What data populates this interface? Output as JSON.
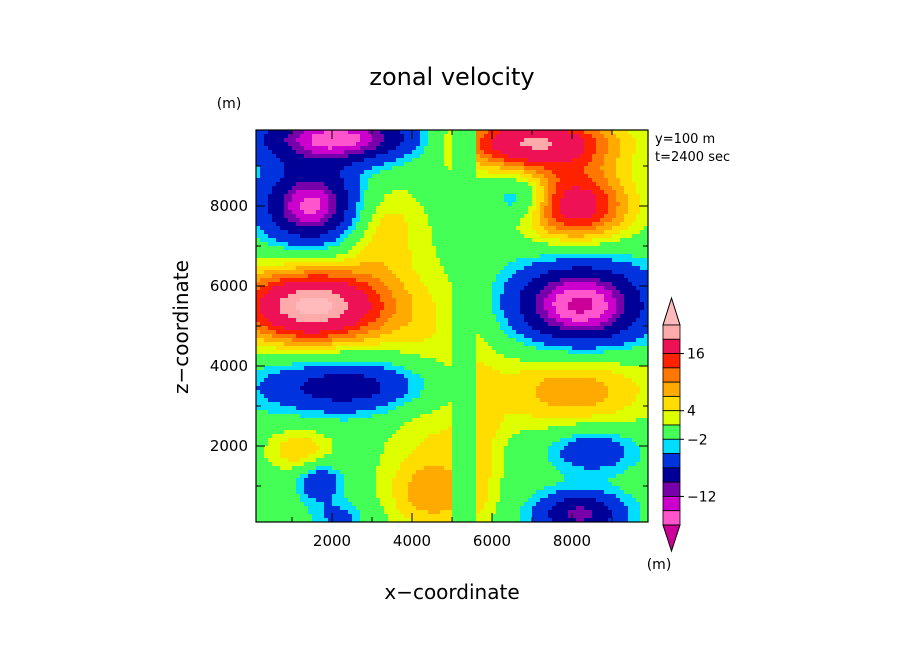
{
  "chart_data": {
    "type": "heatmap",
    "title": "zonal velocity",
    "xlabel": "x−coordinate",
    "ylabel": "z−coordinate",
    "x_unit": "(m)",
    "y_unit": "(m)",
    "annotations": [
      "y=100 m",
      "t=2400 sec"
    ],
    "xlim": [
      100,
      9900
    ],
    "ylim": [
      100,
      9900
    ],
    "x_ticks": [
      2000,
      4000,
      6000,
      8000
    ],
    "y_ticks": [
      2000,
      4000,
      6000,
      8000
    ],
    "x_tick_labels": [
      "2000",
      "4000",
      "6000",
      "8000"
    ],
    "y_tick_labels": [
      "2000",
      "4000",
      "6000",
      "8000"
    ],
    "colorbar": {
      "unit": "(m)",
      "labeled_levels": [
        "16",
        "4",
        "−2",
        "−12"
      ],
      "colors": [
        "#cc0099",
        "#ff55cc",
        "#cc00cc",
        "#7700aa",
        "#000099",
        "#0033dd",
        "#00ddff",
        "#44ff55",
        "#ddff00",
        "#ffdd00",
        "#ffaa00",
        "#ff7700",
        "#ff2200",
        "#ee1155",
        "#ffaaaa",
        "#ffbbbb"
      ]
    },
    "features": [
      {
        "x": 1500,
        "z": 5500,
        "value": 19,
        "sigma_x": 1400,
        "sigma_z": 700
      },
      {
        "x": 8100,
        "z": 8000,
        "value": 14,
        "sigma_x": 1000,
        "sigma_z": 700
      },
      {
        "x": 8000,
        "z": 3500,
        "value": 8,
        "sigma_x": 1500,
        "sigma_z": 800
      },
      {
        "x": 7000,
        "z": 9600,
        "value": 16,
        "sigma_x": 1500,
        "sigma_z": 500
      },
      {
        "x": 4500,
        "z": 3000,
        "value": 4,
        "sigma_x": 1000,
        "sigma_z": 2500
      },
      {
        "x": 5700,
        "z": 2200,
        "value": 3,
        "sigma_x": 400,
        "sigma_z": 1800
      },
      {
        "x": 3200,
        "z": 7500,
        "value": 6,
        "sigma_x": 700,
        "sigma_z": 800
      },
      {
        "x": 1200,
        "z": 1900,
        "value": 6,
        "sigma_x": 600,
        "sigma_z": 400
      },
      {
        "x": 4500,
        "z": 800,
        "value": 5,
        "sigma_x": 800,
        "sigma_z": 600
      },
      {
        "x": 8200,
        "z": 5500,
        "value": -19,
        "sigma_x": 1200,
        "sigma_z": 800
      },
      {
        "x": 1500,
        "z": 8000,
        "value": -17,
        "sigma_x": 900,
        "sigma_z": 700
      },
      {
        "x": 2200,
        "z": 9700,
        "value": -17,
        "sigma_x": 1500,
        "sigma_z": 450
      },
      {
        "x": 2500,
        "z": 3500,
        "value": -11,
        "sigma_x": 1700,
        "sigma_z": 500
      },
      {
        "x": 8200,
        "z": 300,
        "value": -13,
        "sigma_x": 800,
        "sigma_z": 400
      },
      {
        "x": 8500,
        "z": 1900,
        "value": -8,
        "sigma_x": 800,
        "sigma_z": 400
      },
      {
        "x": 1700,
        "z": 1100,
        "value": -8,
        "sigma_x": 400,
        "sigma_z": 350
      },
      {
        "x": 6700,
        "z": 8200,
        "value": -7,
        "sigma_x": 500,
        "sigma_z": 400
      },
      {
        "x": 2200,
        "z": 200,
        "value": -5,
        "sigma_x": 500,
        "sigma_z": 300
      }
    ]
  }
}
